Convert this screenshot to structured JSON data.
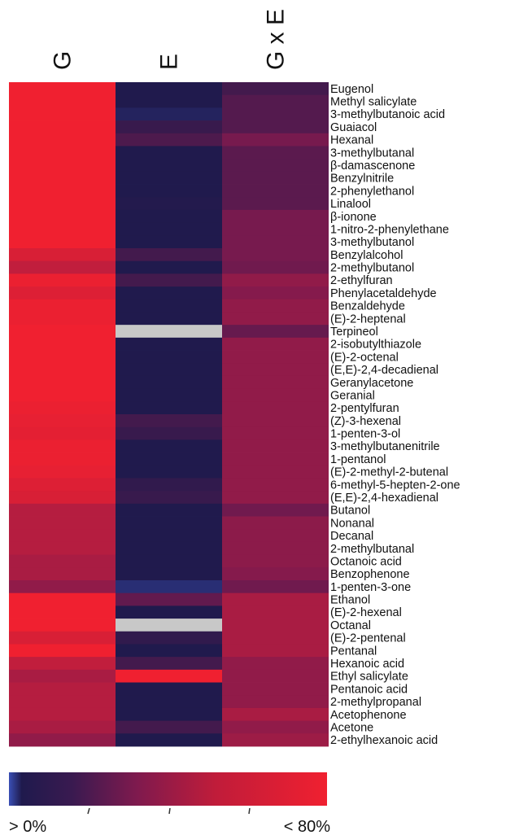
{
  "chart_data": {
    "type": "heatmap",
    "columns": [
      "G",
      "E",
      "G x E"
    ],
    "rows": [
      "Eugenol",
      "Methyl salicylate",
      "3-methylbutanoic acid",
      "Guaiacol",
      "Hexanal",
      "3-methylbutanal",
      "β-damascenone",
      "Benzylnitrile",
      "2-phenylethanol",
      "Linalool",
      "β-ionone",
      "1-nitro-2-phenylethane",
      "3-methylbutanol",
      "Benzylalcohol",
      "2-methylbutanol",
      "2-ethylfuran",
      "Phenylacetaldehyde",
      "Benzaldehyde",
      "(E)-2-heptenal",
      "Terpineol",
      "2-isobutylthiazole",
      "(E)-2-octenal",
      "(E,E)-2,4-decadienal",
      "Geranylacetone",
      "Geranial",
      "2-pentylfuran",
      "(Z)-3-hexenal",
      "1-penten-3-ol",
      "3-methylbutanenitrile",
      "1-pentanol",
      "(E)-2-methyl-2-butenal",
      "6-methyl-5-hepten-2-one",
      "(E,E)-2,4-hexadienal",
      "Butanol",
      "Nonanal",
      "Decanal",
      "2-methylbutanal",
      "Octanoic acid",
      "Benzophenone",
      "1-penten-3-one",
      "Ethanol",
      "(E)-2-hexenal",
      "Octanal",
      "(E)-2-pentenal",
      "Pentanal",
      "Hexanoic acid",
      "Ethyl salicylate",
      "Pentanoic acid",
      "2-methylpropanal",
      "Acetophenone",
      "Acetone",
      "2-ethylhexanoic acid"
    ],
    "values": [
      [
        80,
        5,
        15
      ],
      [
        80,
        5,
        20
      ],
      [
        80,
        4,
        20
      ],
      [
        80,
        12,
        20
      ],
      [
        80,
        18,
        30
      ],
      [
        80,
        5,
        22
      ],
      [
        80,
        5,
        22
      ],
      [
        80,
        5,
        22
      ],
      [
        80,
        5,
        22
      ],
      [
        80,
        6,
        22
      ],
      [
        80,
        5,
        30
      ],
      [
        80,
        5,
        30
      ],
      [
        80,
        5,
        30
      ],
      [
        70,
        15,
        30
      ],
      [
        60,
        5,
        28
      ],
      [
        78,
        15,
        40
      ],
      [
        72,
        5,
        35
      ],
      [
        78,
        5,
        40
      ],
      [
        78,
        5,
        40
      ],
      [
        80,
        null,
        25
      ],
      [
        80,
        5,
        40
      ],
      [
        80,
        5,
        40
      ],
      [
        80,
        5,
        40
      ],
      [
        80,
        5,
        40
      ],
      [
        80,
        5,
        40
      ],
      [
        78,
        5,
        40
      ],
      [
        76,
        15,
        40
      ],
      [
        75,
        12,
        40
      ],
      [
        78,
        5,
        40
      ],
      [
        78,
        5,
        40
      ],
      [
        76,
        5,
        40
      ],
      [
        72,
        10,
        40
      ],
      [
        70,
        12,
        40
      ],
      [
        55,
        5,
        28
      ],
      [
        55,
        5,
        38
      ],
      [
        55,
        5,
        38
      ],
      [
        55,
        5,
        38
      ],
      [
        50,
        5,
        38
      ],
      [
        50,
        5,
        35
      ],
      [
        40,
        3,
        28
      ],
      [
        80,
        24,
        50
      ],
      [
        80,
        5,
        50
      ],
      [
        80,
        null,
        50
      ],
      [
        70,
        10,
        50
      ],
      [
        80,
        5,
        50
      ],
      [
        60,
        15,
        40
      ],
      [
        50,
        80,
        40
      ],
      [
        55,
        5,
        40
      ],
      [
        55,
        5,
        40
      ],
      [
        55,
        5,
        50
      ],
      [
        50,
        15,
        40
      ],
      [
        40,
        5,
        45
      ]
    ],
    "missing_color": "#c8c8c8",
    "colorscale": [
      "#3a4fb5",
      "#1f1a4d",
      "#7e1a4e",
      "#f02030"
    ],
    "legend": {
      "min_label": "> 0%",
      "max_label": "< 80%",
      "range": [
        0,
        80
      ]
    }
  }
}
